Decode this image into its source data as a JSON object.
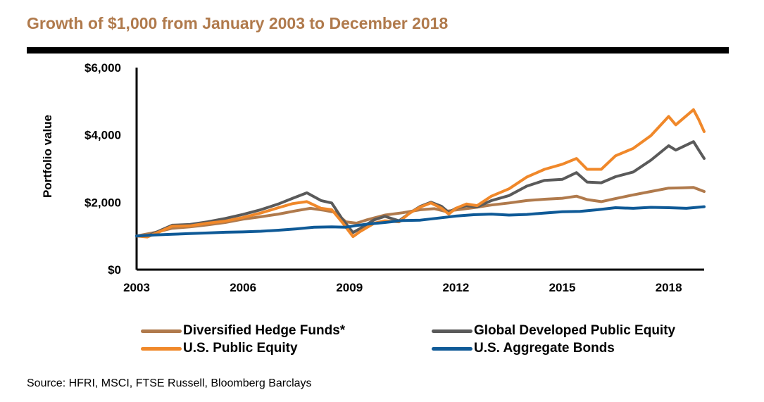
{
  "title": "Growth of $1,000 from January 2003 to December 2018",
  "source": "Source: HFRI, MSCI, FTSE Russell, Bloomberg Barclays",
  "chart_data": {
    "type": "line",
    "title": "Growth of $1,000 from January 2003 to December 2018",
    "ylabel": "Portfolio value",
    "xlabel": "",
    "xlim": [
      2003,
      2019.0
    ],
    "ylim": [
      0,
      6000
    ],
    "x_ticks": [
      2003,
      2006,
      2009,
      2012,
      2015,
      2018
    ],
    "x_tick_labels": [
      "2003",
      "2006",
      "2009",
      "2012",
      "2015",
      "2018"
    ],
    "y_ticks": [
      0,
      2000,
      4000,
      6000
    ],
    "y_tick_labels": [
      "$0",
      "$2,000",
      "$4,000",
      "$6,000"
    ],
    "grid": false,
    "legend_position": "bottom",
    "series": [
      {
        "name": "Diversified Hedge Funds*",
        "color": "#b07a4c",
        "points": [
          [
            2003.0,
            1000
          ],
          [
            2003.5,
            1100
          ],
          [
            2004.0,
            1230
          ],
          [
            2004.5,
            1270
          ],
          [
            2005.0,
            1330
          ],
          [
            2005.5,
            1400
          ],
          [
            2006.0,
            1500
          ],
          [
            2006.5,
            1570
          ],
          [
            2007.0,
            1650
          ],
          [
            2007.5,
            1750
          ],
          [
            2007.9,
            1820
          ],
          [
            2008.3,
            1760
          ],
          [
            2008.6,
            1700
          ],
          [
            2008.9,
            1420
          ],
          [
            2009.2,
            1380
          ],
          [
            2009.5,
            1480
          ],
          [
            2010.0,
            1620
          ],
          [
            2010.5,
            1690
          ],
          [
            2011.0,
            1780
          ],
          [
            2011.4,
            1810
          ],
          [
            2011.7,
            1730
          ],
          [
            2012.0,
            1770
          ],
          [
            2012.5,
            1840
          ],
          [
            2013.0,
            1920
          ],
          [
            2013.5,
            1980
          ],
          [
            2014.0,
            2050
          ],
          [
            2014.5,
            2090
          ],
          [
            2015.0,
            2120
          ],
          [
            2015.4,
            2180
          ],
          [
            2015.7,
            2080
          ],
          [
            2016.1,
            2020
          ],
          [
            2016.5,
            2110
          ],
          [
            2017.0,
            2220
          ],
          [
            2017.5,
            2320
          ],
          [
            2018.0,
            2420
          ],
          [
            2018.4,
            2430
          ],
          [
            2018.7,
            2440
          ],
          [
            2019.0,
            2320
          ]
        ]
      },
      {
        "name": "Global Developed Public Equity",
        "color": "#5a5a5a",
        "points": [
          [
            2003.0,
            1000
          ],
          [
            2003.3,
            990
          ],
          [
            2003.7,
            1180
          ],
          [
            2004.0,
            1320
          ],
          [
            2004.5,
            1340
          ],
          [
            2005.0,
            1420
          ],
          [
            2005.5,
            1520
          ],
          [
            2006.0,
            1640
          ],
          [
            2006.5,
            1780
          ],
          [
            2007.0,
            1950
          ],
          [
            2007.4,
            2120
          ],
          [
            2007.8,
            2280
          ],
          [
            2008.2,
            2050
          ],
          [
            2008.5,
            1980
          ],
          [
            2008.8,
            1500
          ],
          [
            2009.1,
            1100
          ],
          [
            2009.3,
            1220
          ],
          [
            2009.7,
            1480
          ],
          [
            2010.0,
            1580
          ],
          [
            2010.4,
            1450
          ],
          [
            2010.7,
            1680
          ],
          [
            2011.0,
            1880
          ],
          [
            2011.3,
            2000
          ],
          [
            2011.6,
            1880
          ],
          [
            2011.8,
            1700
          ],
          [
            2012.0,
            1820
          ],
          [
            2012.3,
            1900
          ],
          [
            2012.6,
            1860
          ],
          [
            2013.0,
            2050
          ],
          [
            2013.5,
            2200
          ],
          [
            2014.0,
            2480
          ],
          [
            2014.5,
            2650
          ],
          [
            2015.0,
            2680
          ],
          [
            2015.4,
            2880
          ],
          [
            2015.7,
            2600
          ],
          [
            2016.1,
            2580
          ],
          [
            2016.5,
            2760
          ],
          [
            2017.0,
            2900
          ],
          [
            2017.5,
            3250
          ],
          [
            2018.0,
            3680
          ],
          [
            2018.2,
            3550
          ],
          [
            2018.7,
            3800
          ],
          [
            2018.85,
            3550
          ],
          [
            2019.0,
            3300
          ]
        ]
      },
      {
        "name": "U.S. Public Equity",
        "color": "#f0882a",
        "points": [
          [
            2003.0,
            1000
          ],
          [
            2003.3,
            970
          ],
          [
            2003.7,
            1150
          ],
          [
            2004.0,
            1290
          ],
          [
            2004.5,
            1300
          ],
          [
            2005.0,
            1380
          ],
          [
            2005.5,
            1440
          ],
          [
            2006.0,
            1550
          ],
          [
            2006.5,
            1680
          ],
          [
            2007.0,
            1840
          ],
          [
            2007.4,
            1960
          ],
          [
            2007.8,
            2020
          ],
          [
            2008.2,
            1820
          ],
          [
            2008.5,
            1780
          ],
          [
            2008.8,
            1400
          ],
          [
            2009.1,
            980
          ],
          [
            2009.3,
            1130
          ],
          [
            2009.7,
            1380
          ],
          [
            2010.0,
            1450
          ],
          [
            2010.4,
            1420
          ],
          [
            2010.7,
            1680
          ],
          [
            2011.0,
            1860
          ],
          [
            2011.3,
            1980
          ],
          [
            2011.6,
            1820
          ],
          [
            2011.8,
            1650
          ],
          [
            2012.0,
            1820
          ],
          [
            2012.3,
            1950
          ],
          [
            2012.6,
            1900
          ],
          [
            2013.0,
            2180
          ],
          [
            2013.5,
            2400
          ],
          [
            2014.0,
            2750
          ],
          [
            2014.5,
            2980
          ],
          [
            2015.0,
            3130
          ],
          [
            2015.4,
            3300
          ],
          [
            2015.7,
            2980
          ],
          [
            2016.1,
            2980
          ],
          [
            2016.5,
            3380
          ],
          [
            2017.0,
            3600
          ],
          [
            2017.5,
            3980
          ],
          [
            2018.0,
            4550
          ],
          [
            2018.2,
            4300
          ],
          [
            2018.7,
            4750
          ],
          [
            2018.85,
            4450
          ],
          [
            2019.0,
            4100
          ]
        ]
      },
      {
        "name": "U.S. Aggregate Bonds",
        "color": "#0f5a97",
        "points": [
          [
            2003.0,
            1000
          ],
          [
            2003.5,
            1030
          ],
          [
            2004.0,
            1050
          ],
          [
            2004.5,
            1070
          ],
          [
            2005.0,
            1090
          ],
          [
            2005.5,
            1110
          ],
          [
            2006.0,
            1120
          ],
          [
            2006.5,
            1140
          ],
          [
            2007.0,
            1170
          ],
          [
            2007.5,
            1210
          ],
          [
            2008.0,
            1260
          ],
          [
            2008.5,
            1270
          ],
          [
            2008.9,
            1260
          ],
          [
            2009.2,
            1310
          ],
          [
            2009.5,
            1350
          ],
          [
            2010.0,
            1400
          ],
          [
            2010.5,
            1460
          ],
          [
            2011.0,
            1470
          ],
          [
            2011.5,
            1530
          ],
          [
            2012.0,
            1590
          ],
          [
            2012.5,
            1630
          ],
          [
            2013.0,
            1650
          ],
          [
            2013.5,
            1620
          ],
          [
            2014.0,
            1640
          ],
          [
            2014.5,
            1680
          ],
          [
            2015.0,
            1720
          ],
          [
            2015.5,
            1730
          ],
          [
            2016.0,
            1780
          ],
          [
            2016.5,
            1840
          ],
          [
            2017.0,
            1820
          ],
          [
            2017.5,
            1850
          ],
          [
            2018.0,
            1840
          ],
          [
            2018.5,
            1820
          ],
          [
            2019.0,
            1870
          ]
        ]
      }
    ]
  }
}
